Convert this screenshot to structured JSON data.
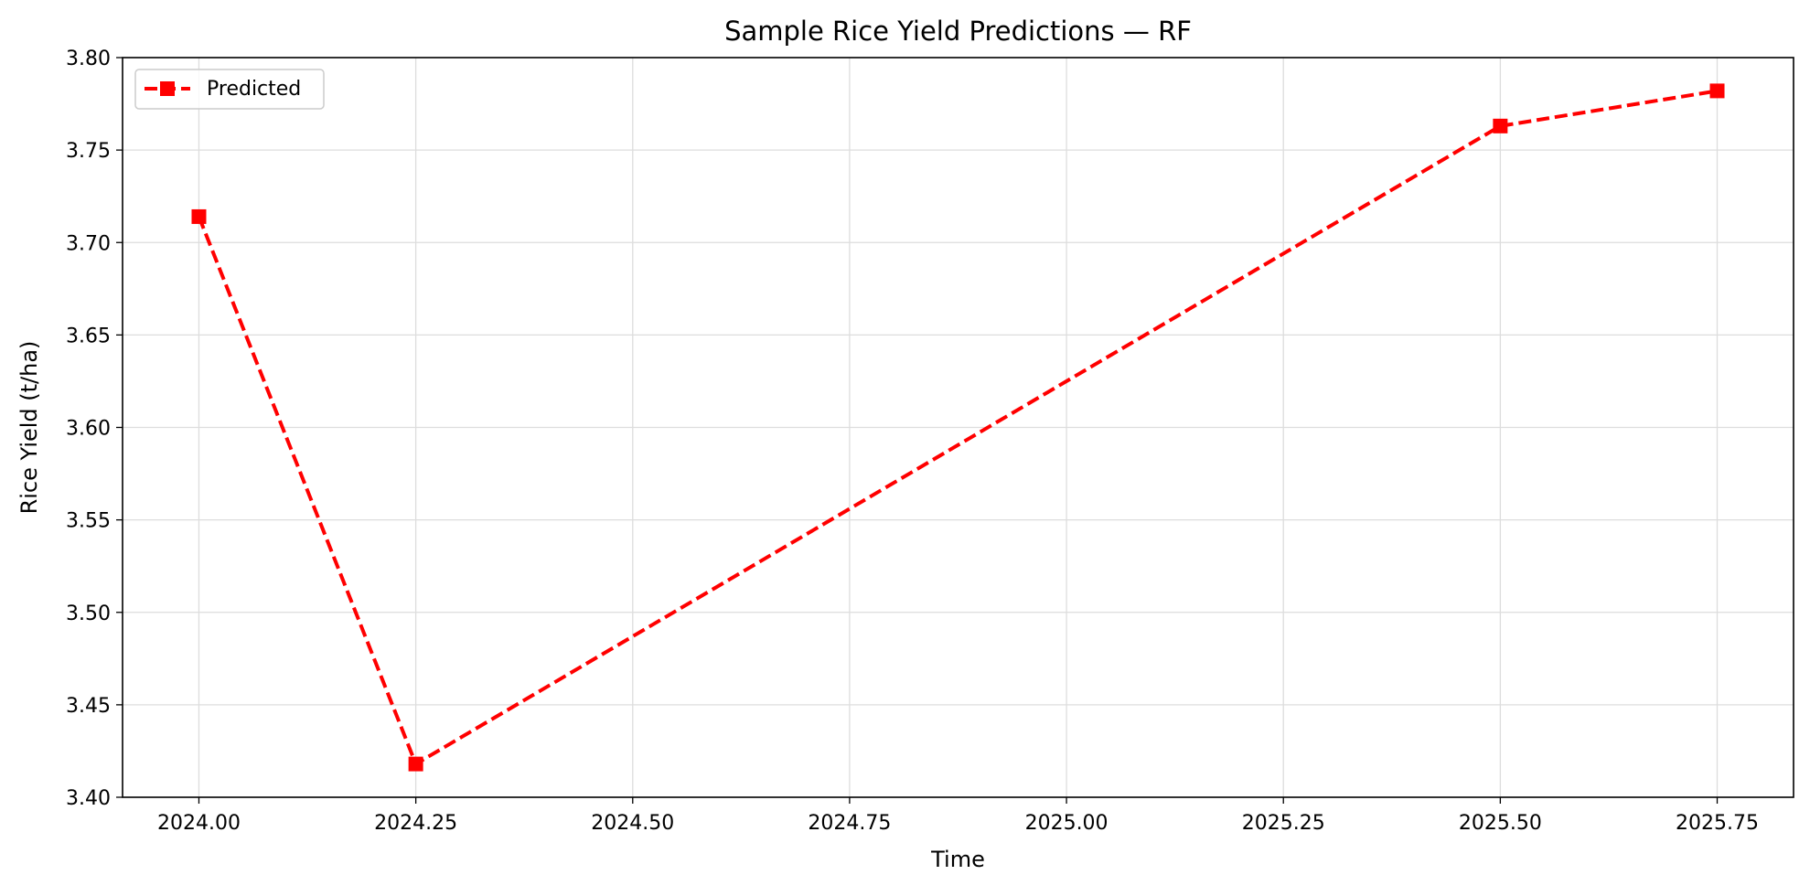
{
  "chart_data": {
    "type": "line",
    "title": "Sample Rice Yield Predictions — RF",
    "xlabel": "Time",
    "ylabel": "Rice Yield (t/ha)",
    "xlim": [
      2023.912,
      2025.838
    ],
    "ylim": [
      3.4,
      3.8
    ],
    "xticks": [
      2024.0,
      2024.25,
      2024.5,
      2024.75,
      2025.0,
      2025.25,
      2025.5,
      2025.75
    ],
    "xtick_labels": [
      "2024.00",
      "2024.25",
      "2024.50",
      "2024.75",
      "2025.00",
      "2025.25",
      "2025.50",
      "2025.75"
    ],
    "yticks": [
      3.4,
      3.45,
      3.5,
      3.55,
      3.6,
      3.65,
      3.7,
      3.75,
      3.8
    ],
    "ytick_labels": [
      "3.40",
      "3.45",
      "3.50",
      "3.55",
      "3.60",
      "3.65",
      "3.70",
      "3.75",
      "3.80"
    ],
    "grid": true,
    "legend_position": "top-left",
    "series": [
      {
        "name": "Predicted",
        "color": "#ff0000",
        "line_style": "dashed",
        "marker": "square",
        "x": [
          2024.0,
          2024.25,
          2025.5,
          2025.75
        ],
        "y": [
          3.714,
          3.418,
          3.763,
          3.782
        ]
      }
    ]
  }
}
